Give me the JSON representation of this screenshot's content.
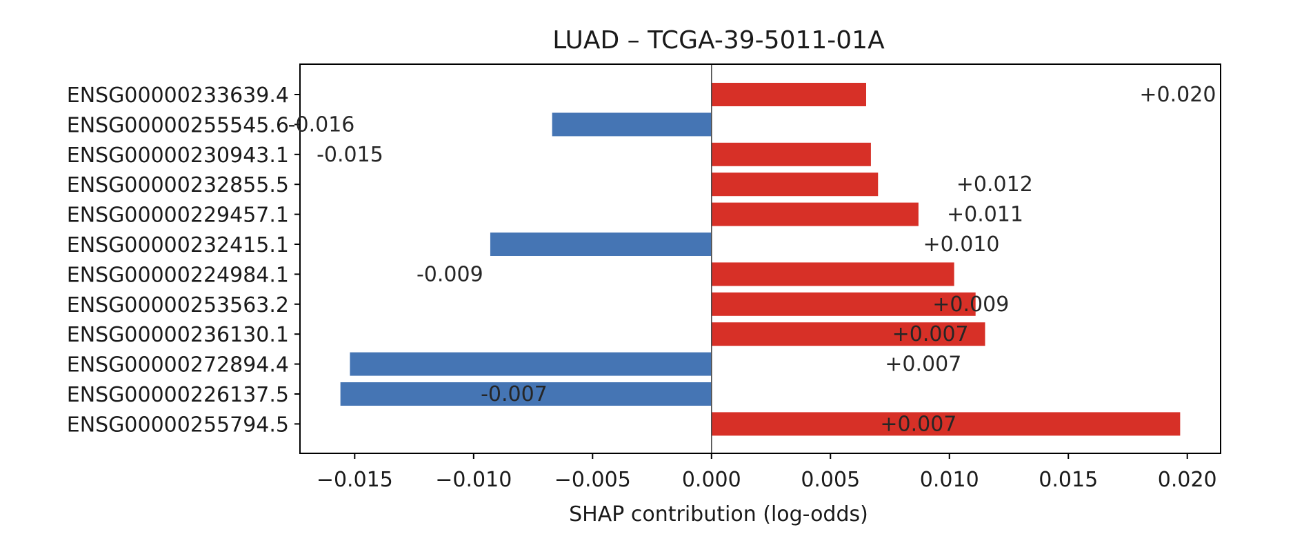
{
  "chart_data": {
    "type": "bar",
    "orientation": "horizontal",
    "title": "LUAD – TCGA-39-5011-01A",
    "xlabel": "SHAP contribution (log-odds)",
    "ylabel": "",
    "xlim": [
      -0.0173,
      0.0214
    ],
    "xticks": [
      -0.015,
      -0.01,
      -0.005,
      0.0,
      0.005,
      0.01,
      0.015,
      0.02
    ],
    "xtick_labels": [
      "−0.015",
      "−0.010",
      "−0.005",
      "0.000",
      "0.005",
      "0.010",
      "0.015",
      "0.020"
    ],
    "grid": false,
    "legend": null,
    "categories": [
      "ENSG00000233639.4",
      "ENSG00000255545.6",
      "ENSG00000230943.1",
      "ENSG00000232855.5",
      "ENSG00000229457.1",
      "ENSG00000232415.1",
      "ENSG00000224984.1",
      "ENSG00000253563.2",
      "ENSG00000236130.1",
      "ENSG00000272894.4",
      "ENSG00000226137.5",
      "ENSG00000255794.5"
    ],
    "values": [
      0.0065,
      -0.0067,
      0.0067,
      0.007,
      0.0087,
      -0.0093,
      0.0102,
      0.0111,
      0.0115,
      -0.0152,
      -0.0156,
      0.0197
    ],
    "value_labels": [
      "+0.020",
      "-0.016",
      "-0.015",
      "+0.012",
      "+0.011",
      "+0.010",
      "-0.009",
      "+0.009",
      "+0.007",
      "+0.007",
      "-0.007",
      "+0.007"
    ],
    "value_label_x": [
      0.0196,
      -0.0164,
      -0.0152,
      0.0119,
      0.0115,
      0.0105,
      -0.011,
      0.0109,
      0.0092,
      0.0089,
      -0.0083,
      0.0087
    ],
    "colors": {
      "positive": "#d73027",
      "negative": "#4575b4",
      "zero_line": "#444444",
      "frame": "#000000"
    }
  }
}
